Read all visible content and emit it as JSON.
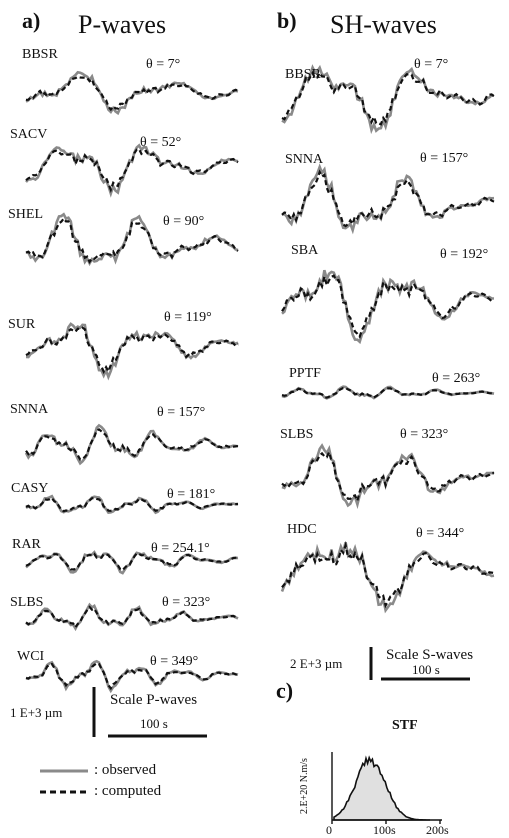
{
  "panels": {
    "a": {
      "letter": "a)",
      "title": "P-waves",
      "stations": [
        {
          "name": "BBSR",
          "angle": "θ = 7°"
        },
        {
          "name": "SACV",
          "angle": "θ = 52°"
        },
        {
          "name": "SHEL",
          "angle": "θ = 90°"
        },
        {
          "name": "SUR",
          "angle": "θ = 119°"
        },
        {
          "name": "SNNA",
          "angle": "θ = 157°"
        },
        {
          "name": "CASY",
          "angle": "θ = 181°"
        },
        {
          "name": "RAR",
          "angle": "θ = 254.1°"
        },
        {
          "name": "SLBS",
          "angle": "θ = 323°"
        },
        {
          "name": "WCI",
          "angle": "θ = 349°"
        }
      ],
      "scale": {
        "amplitude": "1 E+3 µm",
        "label": "Scale P-waves",
        "time": "100 s"
      }
    },
    "b": {
      "letter": "b)",
      "title": "SH-waves",
      "stations": [
        {
          "name": "BBSR",
          "angle": "θ = 7°"
        },
        {
          "name": "SNNA",
          "angle": "θ = 157°"
        },
        {
          "name": "SBA",
          "angle": "θ = 192°"
        },
        {
          "name": "PPTF",
          "angle": "θ = 263°"
        },
        {
          "name": "SLBS",
          "angle": "θ = 323°"
        },
        {
          "name": "HDC",
          "angle": "θ = 344°"
        }
      ],
      "scale": {
        "amplitude": "2 E+3 µm",
        "label": "Scale S-waves",
        "time": "100 s"
      }
    },
    "c": {
      "letter": "c)",
      "label": "STF",
      "y_label": "2.E+20 N.m/s",
      "ticks": [
        "0",
        "100s",
        "200s"
      ]
    }
  },
  "legend": {
    "observed": ": observed",
    "computed": ": computed"
  },
  "colors": {
    "observed": "#8a8a8a",
    "computed": "#111111",
    "stf_fill": "#e0e0e0"
  }
}
